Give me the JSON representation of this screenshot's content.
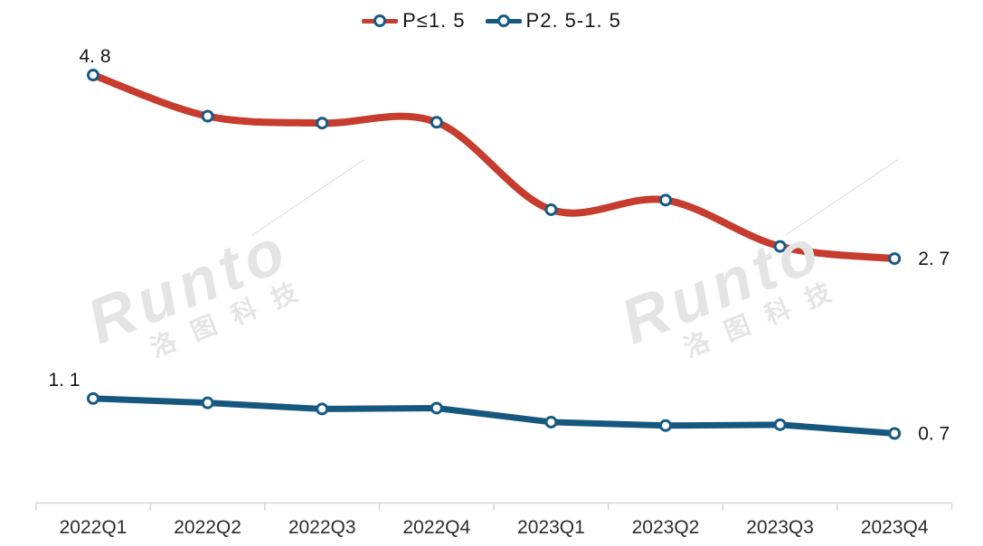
{
  "legend": {
    "items": [
      {
        "label": "P≤1. 5",
        "color": "#c63c2e"
      },
      {
        "label": "P2. 5-1. 5",
        "color": "#16577e"
      }
    ]
  },
  "watermark": {
    "brand": "Runto",
    "cn": "洛图科技"
  },
  "chart_data": {
    "type": "line",
    "categories": [
      "2022Q1",
      "2022Q2",
      "2022Q3",
      "2022Q4",
      "2023Q1",
      "2023Q2",
      "2023Q3",
      "2023Q4"
    ],
    "series": [
      {
        "name": "P≤1.5",
        "color": "#c63c2e",
        "smooth": true,
        "values": [
          4.8,
          4.33,
          4.25,
          4.26,
          3.26,
          3.37,
          2.84,
          2.7
        ],
        "first_label": "4. 8",
        "last_label": "2. 7"
      },
      {
        "name": "P2.5-1.5",
        "color": "#16577e",
        "smooth": false,
        "values": [
          1.1,
          1.05,
          0.98,
          0.99,
          0.83,
          0.79,
          0.8,
          0.7
        ],
        "first_label": "1. 1",
        "last_label": "0. 7"
      }
    ],
    "marker": {
      "fill": "#ffffff",
      "ring": "#175a83"
    },
    "axis": {
      "line_color": "#d6d6d6",
      "label_color": "#2b2b2b",
      "ticks_at_boundaries": true
    },
    "value_axis": {
      "visible": false,
      "implied_range": [
        0,
        5
      ]
    },
    "grid": false,
    "legend_position": "top-center",
    "title": "",
    "xlabel": "",
    "ylabel": ""
  }
}
